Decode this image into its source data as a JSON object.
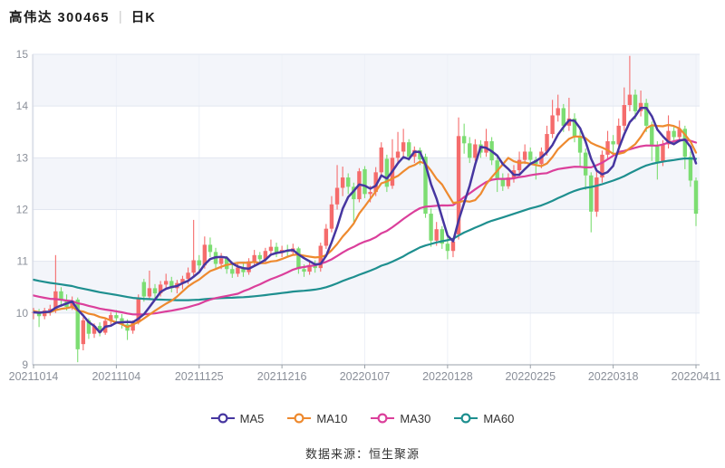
{
  "header": {
    "title": "高伟达 300465",
    "divider": "|",
    "period": "日K"
  },
  "source": {
    "text": "数据来源：恒生聚源"
  },
  "legend": {
    "items": [
      {
        "label": "MA5",
        "color": "#4636a0"
      },
      {
        "label": "MA10",
        "color": "#ee8a2f"
      },
      {
        "label": "MA30",
        "color": "#db3f9b"
      },
      {
        "label": "MA60",
        "color": "#1e8f8f"
      }
    ]
  },
  "style": {
    "up_color": "#f56c6c",
    "down_color": "#7cdd72",
    "band_color": "#f3f5fa",
    "hgrid_color": "#e2e6f0",
    "vgrid_color": "#edf0f7",
    "axis_color": "#9aa0a8",
    "left_axis_color": "#cdd2dc",
    "tick_text_color": "#8a8f99"
  },
  "chart_data": {
    "type": "candlestick",
    "title": "高伟达 300465 日K",
    "xlabel": "",
    "ylabel": "",
    "grid": true,
    "legend_position": "bottom",
    "y_axis": {
      "ticks": [
        9,
        10,
        11,
        12,
        13,
        14,
        15
      ],
      "range": [
        9,
        15
      ]
    },
    "x_axis": {
      "tick_labels": [
        "20211014",
        "20211104",
        "20211125",
        "20211216",
        "20220107",
        "20220128",
        "20220225",
        "20220318",
        "20220411"
      ],
      "tick_indices": [
        0,
        15,
        30,
        45,
        60,
        75,
        90,
        105,
        120
      ]
    },
    "ma_overlays": [
      {
        "name": "MA5",
        "period": 5,
        "color": "#4636a0"
      },
      {
        "name": "MA10",
        "period": 10,
        "color": "#ee8a2f"
      },
      {
        "name": "MA30",
        "period": 30,
        "color": "#db3f9b"
      },
      {
        "name": "MA60",
        "period": 60,
        "color": "#1e8f8f"
      }
    ],
    "prehistory_closes": [
      11.3,
      11.28,
      11.25,
      11.22,
      11.2,
      11.18,
      11.15,
      11.12,
      11.1,
      11.08,
      11.05,
      11.02,
      11.0,
      10.98,
      10.96,
      10.94,
      10.92,
      10.9,
      10.88,
      10.86,
      10.84,
      10.82,
      10.8,
      10.78,
      10.76,
      10.75,
      10.74,
      10.73,
      10.72,
      10.71,
      10.7,
      10.68,
      10.66,
      10.64,
      10.62,
      10.6,
      10.58,
      10.56,
      10.54,
      10.52,
      10.5,
      10.48,
      10.46,
      10.44,
      10.42,
      10.4,
      10.38,
      10.36,
      10.34,
      10.32,
      10.3,
      10.15,
      10.1,
      10.05,
      10.02,
      10.0,
      9.98,
      10.0,
      10.02,
      10.05
    ],
    "ohlc": [
      [
        10.0,
        10.1,
        9.88,
        10.02
      ],
      [
        10.02,
        10.08,
        9.73,
        9.94
      ],
      [
        9.94,
        10.1,
        9.88,
        10.05
      ],
      [
        10.05,
        10.16,
        9.95,
        10.08
      ],
      [
        10.06,
        11.12,
        10.0,
        10.42
      ],
      [
        10.42,
        10.5,
        10.12,
        10.25
      ],
      [
        10.25,
        10.36,
        10.05,
        10.12
      ],
      [
        10.12,
        10.32,
        10.06,
        10.24
      ],
      [
        10.26,
        10.3,
        9.05,
        9.3
      ],
      [
        9.4,
        9.92,
        9.28,
        9.86
      ],
      [
        9.86,
        9.9,
        9.5,
        9.6
      ],
      [
        9.6,
        9.8,
        9.52,
        9.75
      ],
      [
        9.75,
        9.82,
        9.55,
        9.62
      ],
      [
        9.62,
        9.9,
        9.58,
        9.85
      ],
      [
        9.85,
        10.02,
        9.78,
        9.96
      ],
      [
        9.96,
        10.06,
        9.84,
        9.9
      ],
      [
        9.9,
        9.98,
        9.7,
        9.78
      ],
      [
        9.78,
        9.88,
        9.48,
        9.66
      ],
      [
        9.66,
        9.86,
        9.6,
        9.82
      ],
      [
        9.82,
        10.36,
        9.78,
        10.3
      ],
      [
        10.6,
        10.66,
        10.22,
        10.32
      ],
      [
        10.32,
        10.82,
        10.26,
        10.48
      ],
      [
        10.48,
        10.56,
        10.28,
        10.38
      ],
      [
        10.38,
        10.62,
        10.32,
        10.55
      ],
      [
        10.55,
        10.76,
        10.46,
        10.62
      ],
      [
        10.62,
        10.7,
        10.4,
        10.48
      ],
      [
        10.48,
        10.64,
        10.38,
        10.58
      ],
      [
        10.58,
        10.72,
        10.46,
        10.66
      ],
      [
        10.66,
        10.88,
        10.56,
        10.78
      ],
      [
        10.78,
        11.8,
        10.7,
        11.02
      ],
      [
        11.02,
        11.12,
        10.8,
        10.92
      ],
      [
        10.92,
        11.48,
        10.86,
        11.32
      ],
      [
        11.32,
        11.46,
        11.08,
        11.18
      ],
      [
        11.18,
        11.26,
        10.86,
        10.95
      ],
      [
        10.95,
        11.16,
        10.85,
        11.06
      ],
      [
        11.06,
        11.1,
        10.76,
        10.85
      ],
      [
        10.85,
        10.96,
        10.68,
        10.76
      ],
      [
        10.76,
        10.95,
        10.7,
        10.88
      ],
      [
        10.88,
        10.96,
        10.7,
        10.79
      ],
      [
        10.79,
        11.06,
        10.74,
        11.0
      ],
      [
        11.0,
        11.22,
        10.92,
        11.12
      ],
      [
        11.12,
        11.18,
        10.94,
        11.04
      ],
      [
        11.04,
        11.26,
        10.98,
        11.2
      ],
      [
        11.2,
        11.42,
        11.1,
        11.28
      ],
      [
        11.28,
        11.36,
        11.08,
        11.16
      ],
      [
        11.16,
        11.3,
        11.08,
        11.22
      ],
      [
        11.22,
        11.32,
        11.1,
        11.18
      ],
      [
        11.18,
        11.34,
        11.12,
        11.25
      ],
      [
        11.25,
        11.28,
        10.76,
        10.85
      ],
      [
        10.85,
        10.94,
        10.7,
        10.8
      ],
      [
        10.8,
        11.0,
        10.74,
        10.93
      ],
      [
        10.93,
        11.02,
        10.78,
        10.87
      ],
      [
        10.87,
        11.36,
        10.8,
        11.3
      ],
      [
        11.3,
        11.72,
        11.24,
        11.63
      ],
      [
        11.63,
        12.26,
        11.56,
        12.1
      ],
      [
        12.1,
        12.86,
        12.0,
        12.42
      ],
      [
        12.42,
        12.83,
        12.26,
        12.62
      ],
      [
        12.62,
        12.7,
        12.3,
        12.44
      ],
      [
        12.44,
        12.52,
        11.76,
        12.2
      ],
      [
        12.2,
        12.8,
        12.14,
        12.74
      ],
      [
        12.78,
        12.84,
        12.22,
        12.3
      ],
      [
        12.3,
        12.46,
        12.14,
        12.34
      ],
      [
        12.34,
        12.82,
        12.26,
        12.72
      ],
      [
        12.72,
        13.3,
        12.64,
        13.2
      ],
      [
        12.98,
        13.06,
        12.34,
        12.44
      ],
      [
        12.46,
        13.36,
        12.4,
        13.0
      ],
      [
        13.0,
        13.5,
        12.9,
        13.12
      ],
      [
        13.12,
        13.56,
        13.0,
        13.3
      ],
      [
        13.3,
        13.36,
        12.94,
        13.02
      ],
      [
        13.02,
        13.22,
        12.9,
        13.15
      ],
      [
        13.15,
        13.2,
        12.86,
        12.97
      ],
      [
        13.02,
        13.08,
        11.84,
        11.92
      ],
      [
        11.92,
        12.02,
        11.28,
        11.4
      ],
      [
        11.4,
        11.76,
        11.3,
        11.62
      ],
      [
        11.62,
        11.68,
        11.24,
        11.34
      ],
      [
        11.34,
        11.56,
        11.04,
        11.2
      ],
      [
        11.2,
        11.46,
        11.08,
        11.38
      ],
      [
        11.52,
        13.78,
        11.42,
        13.42
      ],
      [
        13.42,
        13.66,
        13.08,
        13.28
      ],
      [
        13.28,
        13.4,
        12.9,
        13.0
      ],
      [
        13.0,
        13.36,
        12.94,
        13.26
      ],
      [
        13.26,
        13.34,
        13.0,
        13.1
      ],
      [
        13.1,
        13.56,
        13.02,
        13.32
      ],
      [
        13.32,
        13.4,
        12.86,
        12.95
      ],
      [
        12.95,
        13.02,
        12.34,
        12.58
      ],
      [
        12.58,
        12.7,
        12.36,
        12.45
      ],
      [
        12.45,
        12.7,
        12.4,
        12.62
      ],
      [
        12.62,
        12.86,
        12.52,
        12.76
      ],
      [
        12.76,
        13.12,
        12.68,
        12.96
      ],
      [
        12.96,
        13.26,
        12.88,
        13.12
      ],
      [
        13.12,
        13.2,
        12.86,
        12.96
      ],
      [
        12.96,
        13.02,
        12.58,
        12.88
      ],
      [
        12.88,
        13.2,
        12.8,
        13.12
      ],
      [
        13.12,
        13.62,
        13.04,
        13.46
      ],
      [
        13.46,
        14.12,
        13.38,
        13.82
      ],
      [
        13.82,
        14.22,
        13.7,
        13.96
      ],
      [
        13.96,
        14.04,
        13.5,
        13.62
      ],
      [
        13.62,
        14.16,
        13.52,
        13.76
      ],
      [
        13.76,
        13.86,
        13.3,
        13.42
      ],
      [
        13.42,
        13.52,
        12.84,
        13.1
      ],
      [
        13.1,
        13.18,
        12.38,
        12.66
      ],
      [
        12.66,
        12.72,
        11.56,
        11.96
      ],
      [
        11.96,
        12.76,
        11.86,
        12.62
      ],
      [
        12.62,
        13.14,
        12.52,
        13.06
      ],
      [
        13.06,
        13.52,
        12.96,
        13.32
      ],
      [
        13.32,
        13.44,
        13.08,
        13.26
      ],
      [
        13.26,
        13.76,
        13.18,
        13.62
      ],
      [
        13.62,
        14.36,
        13.52,
        14.02
      ],
      [
        14.02,
        14.97,
        13.9,
        14.22
      ],
      [
        14.22,
        14.32,
        13.74,
        13.9
      ],
      [
        13.9,
        14.3,
        13.8,
        14.06
      ],
      [
        14.06,
        14.14,
        13.5,
        13.62
      ],
      [
        13.62,
        13.7,
        12.94,
        13.22
      ],
      [
        13.22,
        13.32,
        12.58,
        12.92
      ],
      [
        12.92,
        13.34,
        12.84,
        13.26
      ],
      [
        13.26,
        13.82,
        13.18,
        13.52
      ],
      [
        13.52,
        13.62,
        13.24,
        13.4
      ],
      [
        13.4,
        13.72,
        13.3,
        13.56
      ],
      [
        13.56,
        13.62,
        12.78,
        13.02
      ],
      [
        13.02,
        13.12,
        12.44,
        12.56
      ],
      [
        12.56,
        12.62,
        11.68,
        11.92
      ]
    ]
  }
}
